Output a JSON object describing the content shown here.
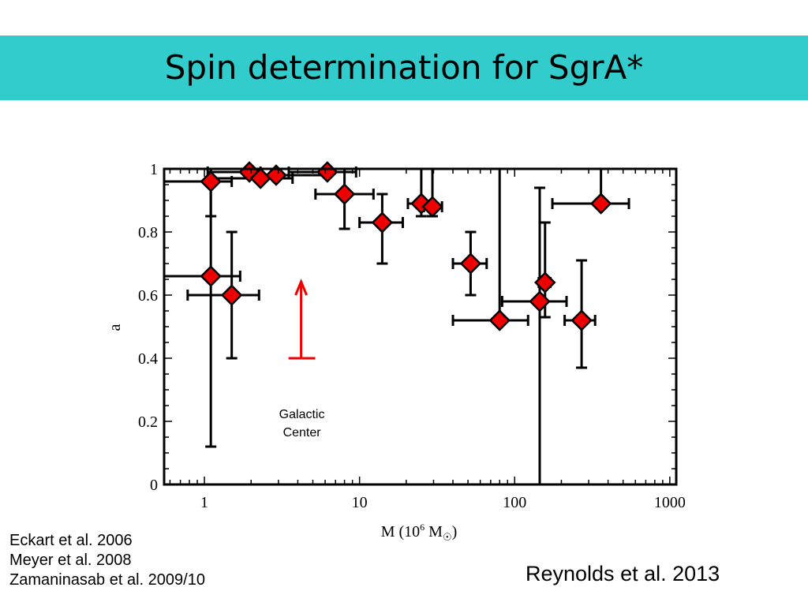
{
  "slide": {
    "title": "Spin determination for SgrA*",
    "references": [
      "Eckart et al. 2006",
      "Meyer et al. 2008",
      "Zamaninasab et al. 2009/10"
    ],
    "credit": "Reynolds et al. 2013"
  },
  "colors": {
    "title_bar": "#33cccc",
    "marker": "#ee0000",
    "marker_edge": "#000000",
    "arrow": "#ee0000",
    "text": "#000000"
  },
  "chart_data": {
    "type": "scatter",
    "title": "",
    "xlabel": "M (10^6 M☉)",
    "ylabel": "a",
    "x_scale": "log",
    "xlim": [
      0.55,
      1100
    ],
    "ylim": [
      0,
      1
    ],
    "x_ticks": [
      1,
      10,
      100,
      1000
    ],
    "x_tick_labels": [
      "1",
      "10",
      "100",
      "1000"
    ],
    "y_ticks": [
      0,
      0.2,
      0.4,
      0.6,
      0.8,
      1
    ],
    "y_tick_labels": [
      "0",
      "0.2",
      "0.4",
      "0.6",
      "0.8",
      "1"
    ],
    "grid": false,
    "annotation": {
      "text_lines": [
        "Galactic",
        "Center"
      ],
      "x": 4.2,
      "lower_limit_a": 0.4
    },
    "points": [
      {
        "x": 1.1,
        "y": 0.96,
        "xerr": [
          0.55,
          1.5
        ],
        "yerr": [
          0.85,
          1.0
        ]
      },
      {
        "x": 1.95,
        "y": 0.99,
        "xerr": [
          1.05,
          2.3
        ],
        "yerr": null
      },
      {
        "x": 2.3,
        "y": 0.97,
        "xerr": [
          1.1,
          3.7
        ],
        "yerr": null
      },
      {
        "x": 2.9,
        "y": 0.98,
        "xerr": [
          2.1,
          6.3
        ],
        "yerr": null
      },
      {
        "x": 6.2,
        "y": 0.99,
        "xerr": [
          3.5,
          9.5
        ],
        "yerr": null
      },
      {
        "x": 8.0,
        "y": 0.92,
        "xerr": [
          5.2,
          12.3
        ],
        "yerr": [
          0.81,
          1.0
        ]
      },
      {
        "x": 14.0,
        "y": 0.83,
        "xerr": [
          10.0,
          19.0
        ],
        "yerr": [
          0.7,
          0.92
        ]
      },
      {
        "x": 25.0,
        "y": 0.89,
        "xerr": [
          20.5,
          29.0
        ],
        "yerr": [
          0.85,
          1.0
        ]
      },
      {
        "x": 29.5,
        "y": 0.88,
        "xerr": [
          26.0,
          34.0
        ],
        "yerr": [
          0.85,
          1.0
        ]
      },
      {
        "x": 52.0,
        "y": 0.7,
        "xerr": [
          40.0,
          66.0
        ],
        "yerr": [
          0.6,
          0.8
        ]
      },
      {
        "x": 80.0,
        "y": 0.52,
        "xerr": [
          40.0,
          122.0
        ],
        "yerr": [
          0.52,
          1.0
        ]
      },
      {
        "x": 145.0,
        "y": 0.58,
        "xerr": [
          83.0,
          216.0
        ],
        "yerr": [
          0.0,
          0.94
        ]
      },
      {
        "x": 157.0,
        "y": 0.64,
        "xerr": [
          143.0,
          170.0
        ],
        "yerr": [
          0.53,
          0.83
        ]
      },
      {
        "x": 270.0,
        "y": 0.52,
        "xerr": [
          210.0,
          330.0
        ],
        "yerr": [
          0.37,
          0.71
        ]
      },
      {
        "x": 360.0,
        "y": 0.89,
        "xerr": [
          175.0,
          545.0
        ],
        "yerr": [
          0.89,
          1.0
        ]
      },
      {
        "x": 1.1,
        "y": 0.66,
        "xerr": [
          0.55,
          1.7
        ],
        "yerr": [
          0.12,
          1.0
        ]
      },
      {
        "x": 1.5,
        "y": 0.6,
        "xerr": [
          0.78,
          2.25
        ],
        "yerr": [
          0.4,
          0.8
        ]
      }
    ]
  }
}
